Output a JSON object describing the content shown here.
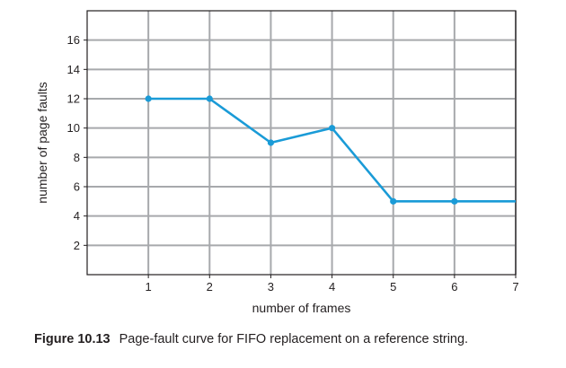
{
  "chart_data": {
    "type": "line",
    "x": [
      1,
      2,
      3,
      4,
      5,
      6,
      7
    ],
    "series": [
      {
        "values": [
          12,
          12,
          9,
          10,
          5,
          5,
          5
        ]
      }
    ],
    "xlabel": "number of frames",
    "ylabel": "number of page faults",
    "xlim": [
      0,
      7
    ],
    "ylim": [
      0,
      18
    ],
    "xticks": [
      1,
      2,
      3,
      4,
      5,
      6,
      7
    ],
    "yticks": [
      2,
      4,
      6,
      8,
      10,
      12,
      14,
      16
    ],
    "grid": true,
    "line_color": "#1a9bd7",
    "grid_color": "#a7a9ac",
    "marker_points": [
      1,
      2,
      3,
      4,
      5,
      6
    ]
  },
  "caption": {
    "label": "Figure 10.13",
    "text": "Page-fault curve for FIFO replacement on a reference string."
  }
}
